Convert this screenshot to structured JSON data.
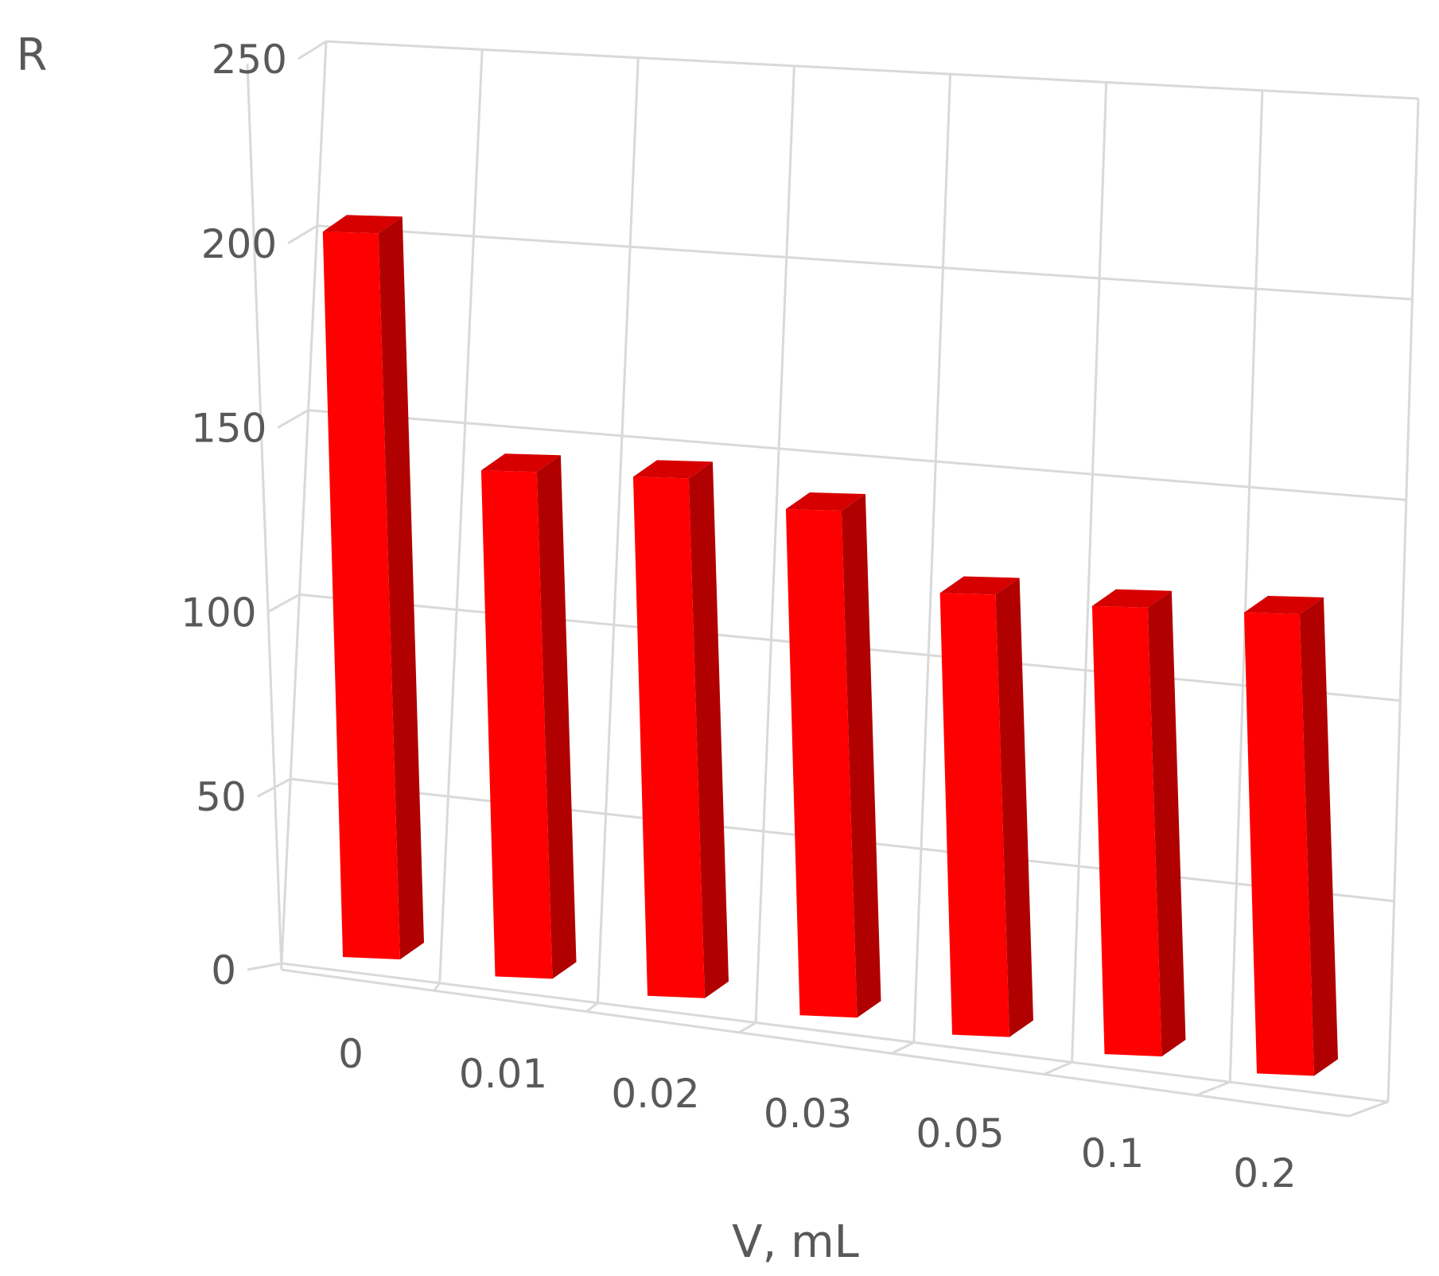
{
  "chart_data": {
    "type": "bar",
    "title": "",
    "ylabel": "R",
    "xlabel": "V, mL",
    "categories": [
      "0",
      "0.01",
      "0.02",
      "0.03",
      "0.05",
      "0.1",
      "0.2"
    ],
    "values": [
      225,
      157,
      161,
      157,
      137,
      139,
      143
    ],
    "ylim": [
      0,
      250
    ],
    "yticks": [
      0,
      50,
      100,
      150,
      200,
      250
    ],
    "grid": true,
    "legend": "none",
    "colors": {
      "bar_front": "#ff0000",
      "bar_side": "#b00000",
      "bar_top": "#d60000",
      "grid": "#d9d9d9",
      "text": "#595959"
    }
  }
}
